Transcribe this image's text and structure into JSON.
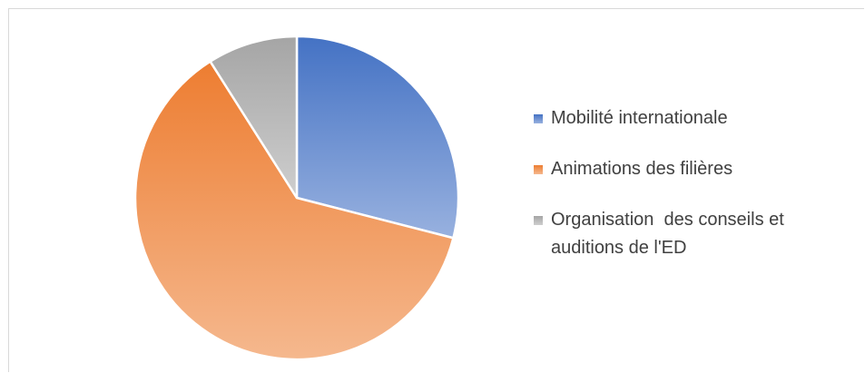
{
  "chart_data": {
    "type": "pie",
    "categories": [
      "Mobilité internationale",
      "Animations des filières",
      "Organisation  des conseils et auditions de l'ED"
    ],
    "values": [
      29,
      62,
      9
    ],
    "colors": [
      "#4472c4",
      "#ed7d31",
      "#a5a5a5"
    ],
    "legend": "right"
  }
}
